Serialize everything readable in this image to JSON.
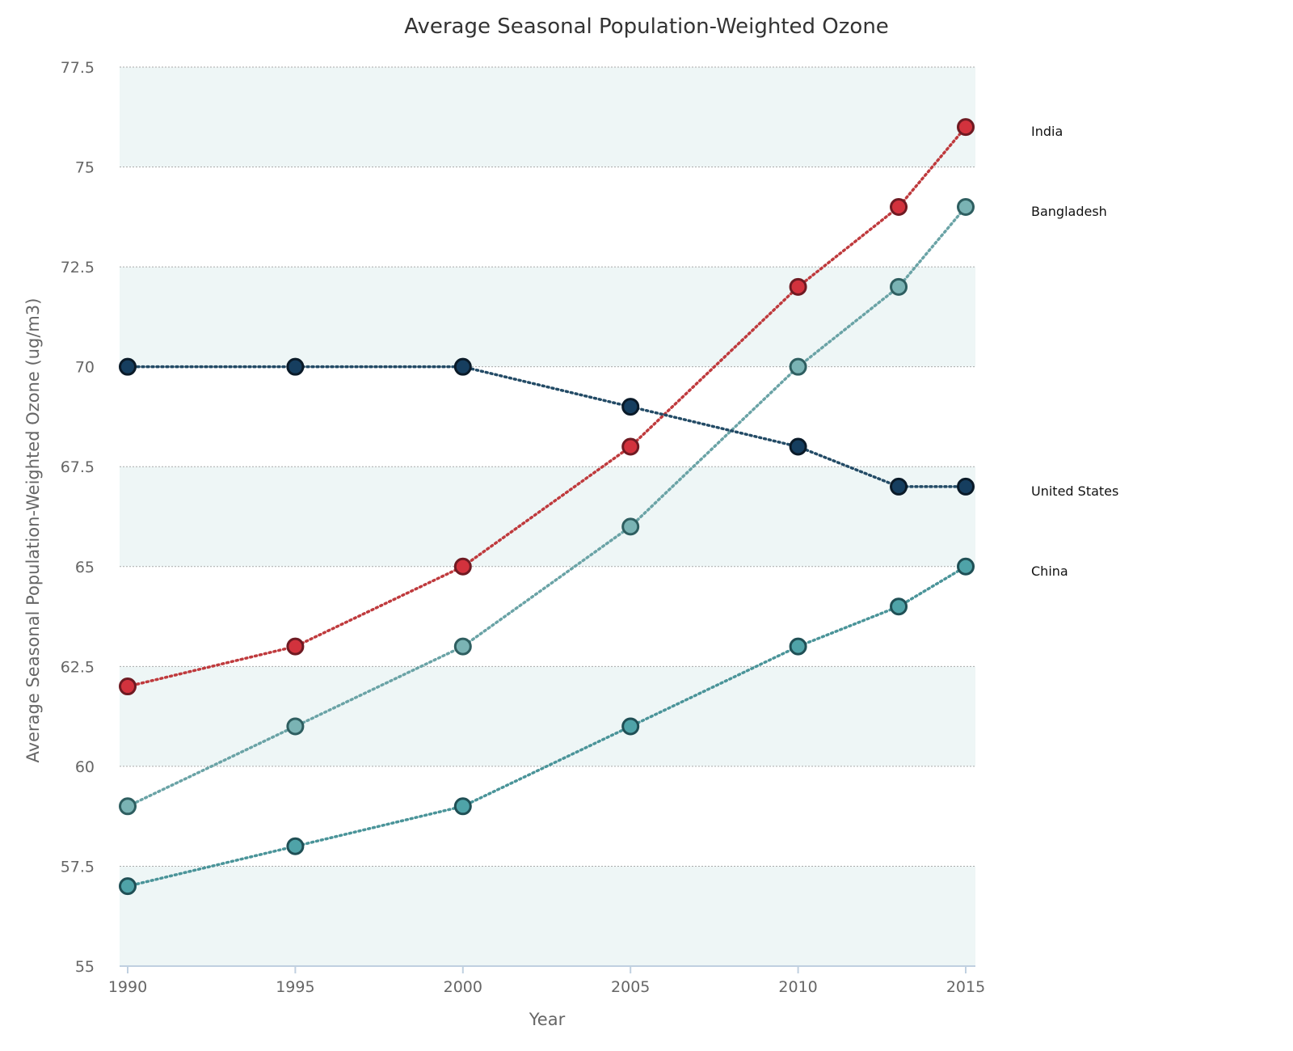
{
  "chart_data": {
    "type": "line",
    "title": "Average Seasonal Population-Weighted Ozone",
    "xlabel": "Year",
    "ylabel": "Average Seasonal Population-Weighted Ozone (ug/m3)",
    "xlim": [
      1990,
      2015
    ],
    "ylim": [
      55,
      77.5
    ],
    "x_ticks": [
      1990,
      1995,
      2000,
      2005,
      2010,
      2015
    ],
    "x_tick_labels": [
      "1990",
      "1995",
      "2000",
      "2005",
      "2010",
      "2015"
    ],
    "y_ticks": [
      55,
      57.5,
      60,
      62.5,
      65,
      67.5,
      70,
      72.5,
      75,
      77.5
    ],
    "y_tick_labels": [
      "55",
      "57.5",
      "60",
      "62.5",
      "65",
      "67.5",
      "70",
      "72.5",
      "75",
      "77.5"
    ],
    "grid": true,
    "legend": "series labels at right end of lines",
    "x": [
      1990,
      1995,
      2000,
      2005,
      2010,
      2013,
      2015
    ],
    "series": [
      {
        "name": "India",
        "values": [
          62,
          63,
          65,
          68,
          72,
          74,
          76
        ],
        "color": "#d2323d",
        "stroke": "#bf3a3d",
        "edge": "#6e1a22"
      },
      {
        "name": "Bangladesh",
        "values": [
          59,
          61,
          63,
          66,
          70,
          72,
          74
        ],
        "color": "#7ab3b4",
        "stroke": "#6aa3a6",
        "edge": "#2e5e60"
      },
      {
        "name": "United States",
        "values": [
          70,
          70,
          70,
          69,
          68,
          67,
          67
        ],
        "color": "#163e5f",
        "stroke": "#234b66",
        "edge": "#0a1a28"
      },
      {
        "name": "China",
        "values": [
          57,
          58,
          59,
          61,
          63,
          64,
          65
        ],
        "color": "#4fa3a8",
        "stroke": "#4a9499",
        "edge": "#1f4f55"
      }
    ]
  },
  "colors": {
    "band": "#eef6f6",
    "grid": "#aaaaaa",
    "axis": "#c0d0e0"
  }
}
